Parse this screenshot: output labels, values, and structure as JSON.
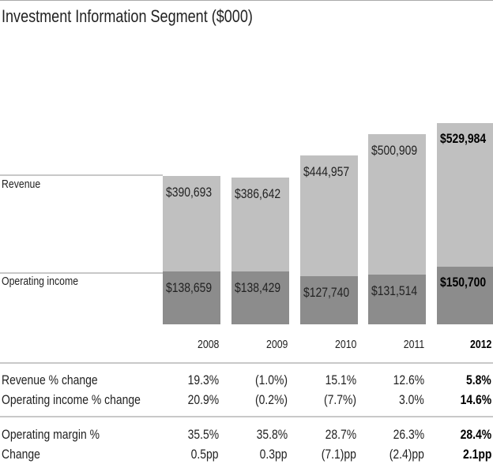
{
  "chart_data": {
    "type": "bar",
    "title": "Investment Information Segment ($000)",
    "categories": [
      "2008",
      "2009",
      "2010",
      "2011",
      "2012"
    ],
    "highlight_category": "2012",
    "series": [
      {
        "name": "Revenue",
        "values": [
          390693,
          386642,
          444957,
          500909,
          529984
        ],
        "labels": [
          "$390,693",
          "$386,642",
          "$444,957",
          "$500,909",
          "$529,984"
        ],
        "color": "#c0c0c0"
      },
      {
        "name": "Operating income",
        "values": [
          138659,
          138429,
          127740,
          131514,
          150700
        ],
        "labels": [
          "$138,659",
          "$138,429",
          "$127,740",
          "$131,514",
          "$150,700"
        ],
        "color": "#8c8c8c"
      }
    ],
    "xlabel": "",
    "ylabel": "",
    "ylim": [
      0,
      530000
    ],
    "table": [
      {
        "label": "Revenue % change",
        "values": [
          "19.3%",
          "(1.0%)",
          "15.1%",
          "12.6%",
          "5.8%"
        ]
      },
      {
        "label": "Operating income % change",
        "values": [
          "20.9%",
          "(0.2%)",
          "(7.7%)",
          "3.0%",
          "14.6%"
        ]
      },
      {
        "label": "Operating margin %",
        "values": [
          "35.5%",
          "35.8%",
          "28.7%",
          "26.3%",
          "28.4%"
        ]
      },
      {
        "label": "Change",
        "values": [
          "0.5pp",
          "0.3pp",
          "(7.1)pp",
          "(2.4)pp",
          "2.1pp"
        ]
      }
    ]
  }
}
